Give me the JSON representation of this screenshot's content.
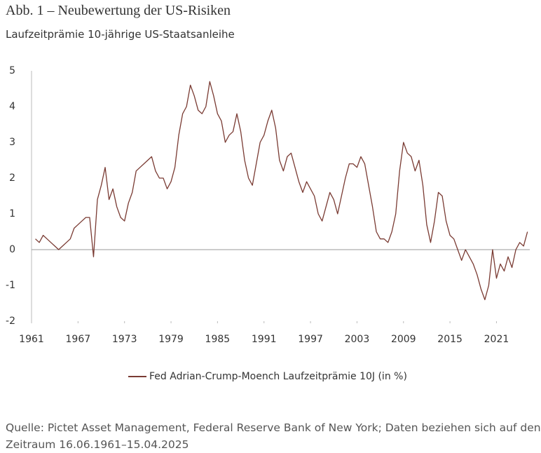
{
  "chart_data": {
    "type": "line",
    "title": "Abb. 1 – Neubewertung der US-Risiken",
    "subtitle": "Laufzeitprämie 10-jährige US-Staatsanleihe",
    "source": "Quelle: Pictet Asset Management, Federal Reserve Bank of New York; Daten beziehen sich auf den Zeitraum 16.06.1961–15.04.2025",
    "x": [
      1961.5,
      1962,
      1962.5,
      1963,
      1963.5,
      1964,
      1964.5,
      1965,
      1965.5,
      1966,
      1966.5,
      1967,
      1967.5,
      1968,
      1968.5,
      1969,
      1969.5,
      1970,
      1970.5,
      1971,
      1971.5,
      1972,
      1972.5,
      1973,
      1973.5,
      1974,
      1974.5,
      1975,
      1975.5,
      1976,
      1976.5,
      1977,
      1977.5,
      1978,
      1978.5,
      1979,
      1979.5,
      1980,
      1980.5,
      1981,
      1981.5,
      1982,
      1982.5,
      1983,
      1983.5,
      1984,
      1984.5,
      1985,
      1985.5,
      1986,
      1986.5,
      1987,
      1987.5,
      1988,
      1988.5,
      1989,
      1989.5,
      1990,
      1990.5,
      1991,
      1991.5,
      1992,
      1992.5,
      1993,
      1993.5,
      1994,
      1994.5,
      1995,
      1995.5,
      1996,
      1996.5,
      1997,
      1997.5,
      1998,
      1998.5,
      1999,
      1999.5,
      2000,
      2000.5,
      2001,
      2001.5,
      2002,
      2002.5,
      2003,
      2003.5,
      2004,
      2004.5,
      2005,
      2005.5,
      2006,
      2006.5,
      2007,
      2007.5,
      2008,
      2008.5,
      2009,
      2009.5,
      2010,
      2010.5,
      2011,
      2011.5,
      2012,
      2012.5,
      2013,
      2013.5,
      2014,
      2014.5,
      2015,
      2015.5,
      2016,
      2016.5,
      2017,
      2017.5,
      2018,
      2018.5,
      2019,
      2019.5,
      2020,
      2020.5,
      2021,
      2021.5,
      2022,
      2022.5,
      2023,
      2023.5,
      2024,
      2024.5,
      2025
    ],
    "series": [
      {
        "name": "Fed Adrian-Crump-Moench Laufzeitprämie 10J (in %)",
        "color": "#7a3b33",
        "values": [
          0.3,
          0.2,
          0.4,
          0.3,
          0.2,
          0.1,
          0.0,
          0.1,
          0.2,
          0.3,
          0.6,
          0.7,
          0.8,
          0.9,
          0.9,
          -0.2,
          1.4,
          1.8,
          2.3,
          1.4,
          1.7,
          1.2,
          0.9,
          0.8,
          1.3,
          1.6,
          2.2,
          2.3,
          2.4,
          2.5,
          2.6,
          2.2,
          2.0,
          2.0,
          1.7,
          1.9,
          2.3,
          3.2,
          3.8,
          4.0,
          4.6,
          4.3,
          3.9,
          3.8,
          4.0,
          4.7,
          4.3,
          3.8,
          3.6,
          3.0,
          3.2,
          3.3,
          3.8,
          3.3,
          2.5,
          2.0,
          1.8,
          2.4,
          3.0,
          3.2,
          3.6,
          3.9,
          3.4,
          2.5,
          2.2,
          2.6,
          2.7,
          2.3,
          1.9,
          1.6,
          1.9,
          1.7,
          1.5,
          1.0,
          0.8,
          1.2,
          1.6,
          1.4,
          1.0,
          1.5,
          2.0,
          2.4,
          2.4,
          2.3,
          2.6,
          2.4,
          1.8,
          1.2,
          0.5,
          0.3,
          0.3,
          0.2,
          0.5,
          1.0,
          2.2,
          3.0,
          2.7,
          2.6,
          2.2,
          2.5,
          1.8,
          0.7,
          0.2,
          0.8,
          1.6,
          1.5,
          0.8,
          0.4,
          0.3,
          0.0,
          -0.3,
          0.0,
          -0.2,
          -0.4,
          -0.7,
          -1.1,
          -1.4,
          -1.0,
          0.0,
          -0.8,
          -0.4,
          -0.6,
          -0.2,
          -0.5,
          0.0,
          0.2,
          0.1,
          0.5
        ]
      }
    ],
    "xlim": [
      1961,
      2025.3
    ],
    "xticks": [
      1961,
      1967,
      1973,
      1979,
      1985,
      1991,
      1997,
      2003,
      2009,
      2015,
      2021
    ],
    "ylim": [
      -2,
      5
    ],
    "yticks": [
      -2,
      -1,
      0,
      1,
      2,
      3,
      4,
      5
    ],
    "zero_line": true
  }
}
